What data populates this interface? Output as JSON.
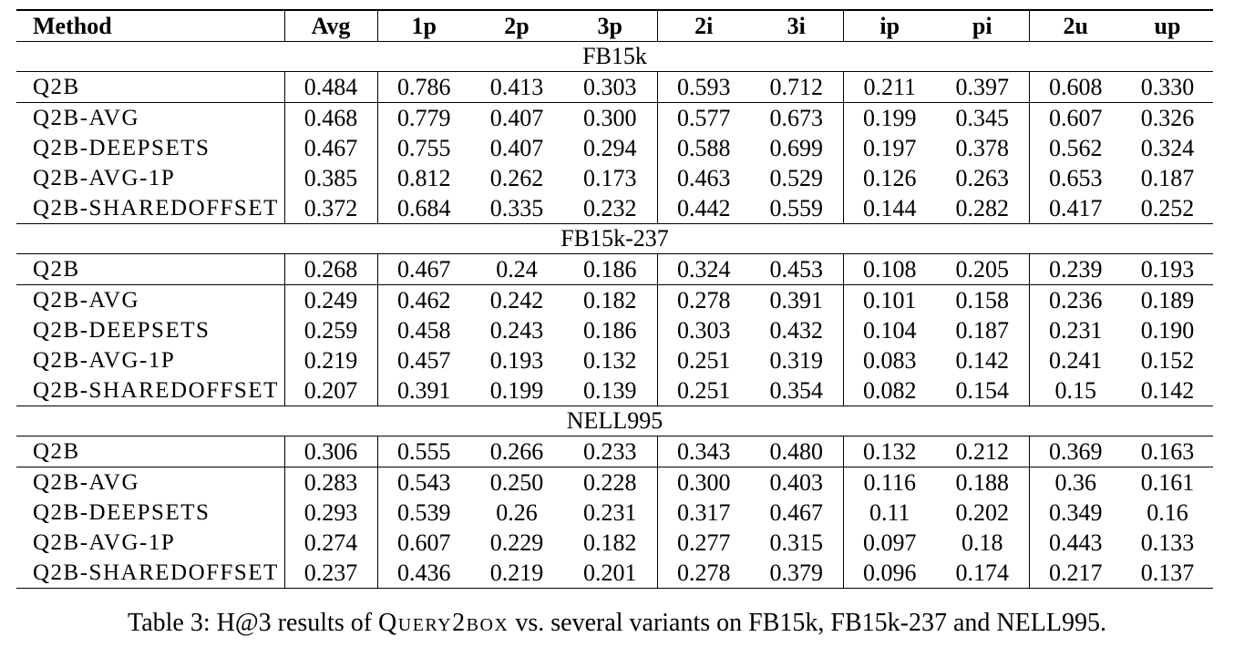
{
  "table": {
    "columns": [
      "Method",
      "Avg",
      "1p",
      "2p",
      "3p",
      "2i",
      "3i",
      "ip",
      "pi",
      "2u",
      "up"
    ],
    "sections": [
      {
        "name": "FB15k",
        "rows": [
          {
            "method": "Q2B",
            "values": [
              "0.484",
              "0.786",
              "0.413",
              "0.303",
              "0.593",
              "0.712",
              "0.211",
              "0.397",
              "0.608",
              "0.330"
            ],
            "bold": [
              true,
              false,
              true,
              true,
              true,
              true,
              true,
              true,
              false,
              true
            ]
          },
          {
            "method": "Q2B-AVG",
            "values": [
              "0.468",
              "0.779",
              "0.407",
              "0.300",
              "0.577",
              "0.673",
              "0.199",
              "0.345",
              "0.607",
              "0.326"
            ],
            "bold": [
              false,
              false,
              false,
              false,
              false,
              false,
              false,
              false,
              false,
              false
            ]
          },
          {
            "method": "Q2B-DEEPSETS",
            "values": [
              "0.467",
              "0.755",
              "0.407",
              "0.294",
              "0.588",
              "0.699",
              "0.197",
              "0.378",
              "0.562",
              "0.324"
            ],
            "bold": [
              false,
              false,
              false,
              false,
              false,
              false,
              false,
              false,
              false,
              false
            ]
          },
          {
            "method": "Q2B-AVG-1P",
            "values": [
              "0.385",
              "0.812",
              "0.262",
              "0.173",
              "0.463",
              "0.529",
              "0.126",
              "0.263",
              "0.653",
              "0.187"
            ],
            "bold": [
              false,
              true,
              false,
              false,
              false,
              false,
              false,
              false,
              true,
              false
            ]
          },
          {
            "method": "Q2B-SHAREDOFFSET",
            "values": [
              "0.372",
              "0.684",
              "0.335",
              "0.232",
              "0.442",
              "0.559",
              "0.144",
              "0.282",
              "0.417",
              "0.252"
            ],
            "bold": [
              false,
              false,
              false,
              false,
              false,
              false,
              false,
              false,
              false,
              false
            ]
          }
        ]
      },
      {
        "name": "FB15k-237",
        "rows": [
          {
            "method": "Q2B",
            "values": [
              "0.268",
              "0.467",
              "0.24",
              "0.186",
              "0.324",
              "0.453",
              "0.108",
              "0.205",
              "0.239",
              "0.193"
            ],
            "bold": [
              true,
              true,
              false,
              true,
              true,
              true,
              true,
              true,
              false,
              true
            ]
          },
          {
            "method": "Q2B-AVG",
            "values": [
              "0.249",
              "0.462",
              "0.242",
              "0.182",
              "0.278",
              "0.391",
              "0.101",
              "0.158",
              "0.236",
              "0.189"
            ],
            "bold": [
              false,
              false,
              false,
              false,
              false,
              false,
              false,
              false,
              false,
              false
            ]
          },
          {
            "method": "Q2B-DEEPSETS",
            "values": [
              "0.259",
              "0.458",
              "0.243",
              "0.186",
              "0.303",
              "0.432",
              "0.104",
              "0.187",
              "0.231",
              "0.190"
            ],
            "bold": [
              false,
              false,
              true,
              true,
              false,
              false,
              false,
              false,
              false,
              false
            ]
          },
          {
            "method": "Q2B-AVG-1P",
            "values": [
              "0.219",
              "0.457",
              "0.193",
              "0.132",
              "0.251",
              "0.319",
              "0.083",
              "0.142",
              "0.241",
              "0.152"
            ],
            "bold": [
              false,
              false,
              false,
              false,
              false,
              false,
              false,
              false,
              true,
              false
            ]
          },
          {
            "method": "Q2B-SHAREDOFFSET",
            "values": [
              "0.207",
              "0.391",
              "0.199",
              "0.139",
              "0.251",
              "0.354",
              "0.082",
              "0.154",
              "0.15",
              "0.142"
            ],
            "bold": [
              false,
              false,
              false,
              false,
              false,
              false,
              false,
              false,
              false,
              false
            ]
          }
        ]
      },
      {
        "name": "NELL995",
        "rows": [
          {
            "method": "Q2B",
            "values": [
              "0.306",
              "0.555",
              "0.266",
              "0.233",
              "0.343",
              "0.480",
              "0.132",
              "0.212",
              "0.369",
              "0.163"
            ],
            "bold": [
              true,
              false,
              true,
              true,
              true,
              true,
              true,
              true,
              false,
              true
            ]
          },
          {
            "method": "Q2B-AVG",
            "values": [
              "0.283",
              "0.543",
              "0.250",
              "0.228",
              "0.300",
              "0.403",
              "0.116",
              "0.188",
              "0.36",
              "0.161"
            ],
            "bold": [
              false,
              false,
              false,
              false,
              false,
              false,
              false,
              false,
              false,
              false
            ]
          },
          {
            "method": "Q2B-DEEPSETS",
            "values": [
              "0.293",
              "0.539",
              "0.26",
              "0.231",
              "0.317",
              "0.467",
              "0.11",
              "0.202",
              "0.349",
              "0.16"
            ],
            "bold": [
              false,
              false,
              false,
              false,
              false,
              false,
              false,
              false,
              false,
              false
            ]
          },
          {
            "method": "Q2B-AVG-1P",
            "values": [
              "0.274",
              "0.607",
              "0.229",
              "0.182",
              "0.277",
              "0.315",
              "0.097",
              "0.18",
              "0.443",
              "0.133"
            ],
            "bold": [
              false,
              true,
              false,
              false,
              false,
              false,
              false,
              false,
              true,
              false
            ]
          },
          {
            "method": "Q2B-SHAREDOFFSET",
            "values": [
              "0.237",
              "0.436",
              "0.219",
              "0.201",
              "0.278",
              "0.379",
              "0.096",
              "0.174",
              "0.217",
              "0.137"
            ],
            "bold": [
              false,
              false,
              false,
              false,
              false,
              false,
              false,
              false,
              false,
              false
            ]
          }
        ]
      }
    ]
  },
  "caption": {
    "prefix": "Table 3: H@3 results of ",
    "model": "Query2box",
    "suffix": " vs. several variants on FB15k, FB15k-237 and NELL995."
  }
}
